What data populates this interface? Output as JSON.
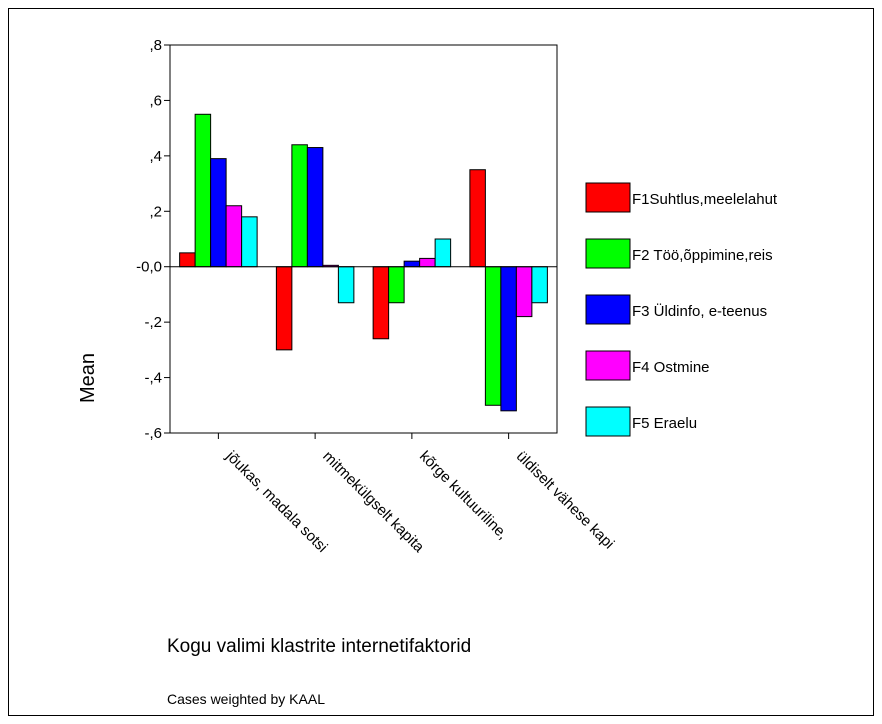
{
  "chart_data": {
    "type": "bar",
    "ylabel": "Mean",
    "xlabel": "Kogu valimi klastrite internetifaktorid",
    "note": "Cases weighted by KAAL",
    "ylim": [
      -0.6,
      0.8
    ],
    "yticks": [
      0.8,
      0.6,
      0.4,
      0.2,
      0.0,
      -0.2,
      -0.4,
      -0.6
    ],
    "ytick_labels": [
      ",8",
      ",6",
      ",4",
      ",2",
      "-0,0",
      "-,2",
      "-,4",
      "-,6"
    ],
    "categories": [
      "jõukas, madala sotsi",
      "mitmekülgselt kapita",
      "kõrge kultuuriline,",
      "üldiselt vähese kapi"
    ],
    "series": [
      {
        "name": "F1Suhtlus,meelelahut",
        "color": "#ff0000",
        "values": [
          0.05,
          -0.3,
          -0.26,
          0.35
        ]
      },
      {
        "name": "F2 Töö,õppimine,reis",
        "color": "#00ff00",
        "values": [
          0.55,
          0.44,
          -0.13,
          -0.5
        ]
      },
      {
        "name": "F3 Üldinfo, e-teenus",
        "color": "#0000ff",
        "values": [
          0.39,
          0.43,
          0.02,
          -0.52
        ]
      },
      {
        "name": "F4 Ostmine",
        "color": "#ff00ff",
        "values": [
          0.22,
          0.005,
          0.03,
          -0.18
        ]
      },
      {
        "name": "F5  Eraelu",
        "color": "#00ffff",
        "values": [
          0.18,
          -0.13,
          0.1,
          -0.13
        ]
      }
    ],
    "grid": false,
    "legend": "right"
  }
}
